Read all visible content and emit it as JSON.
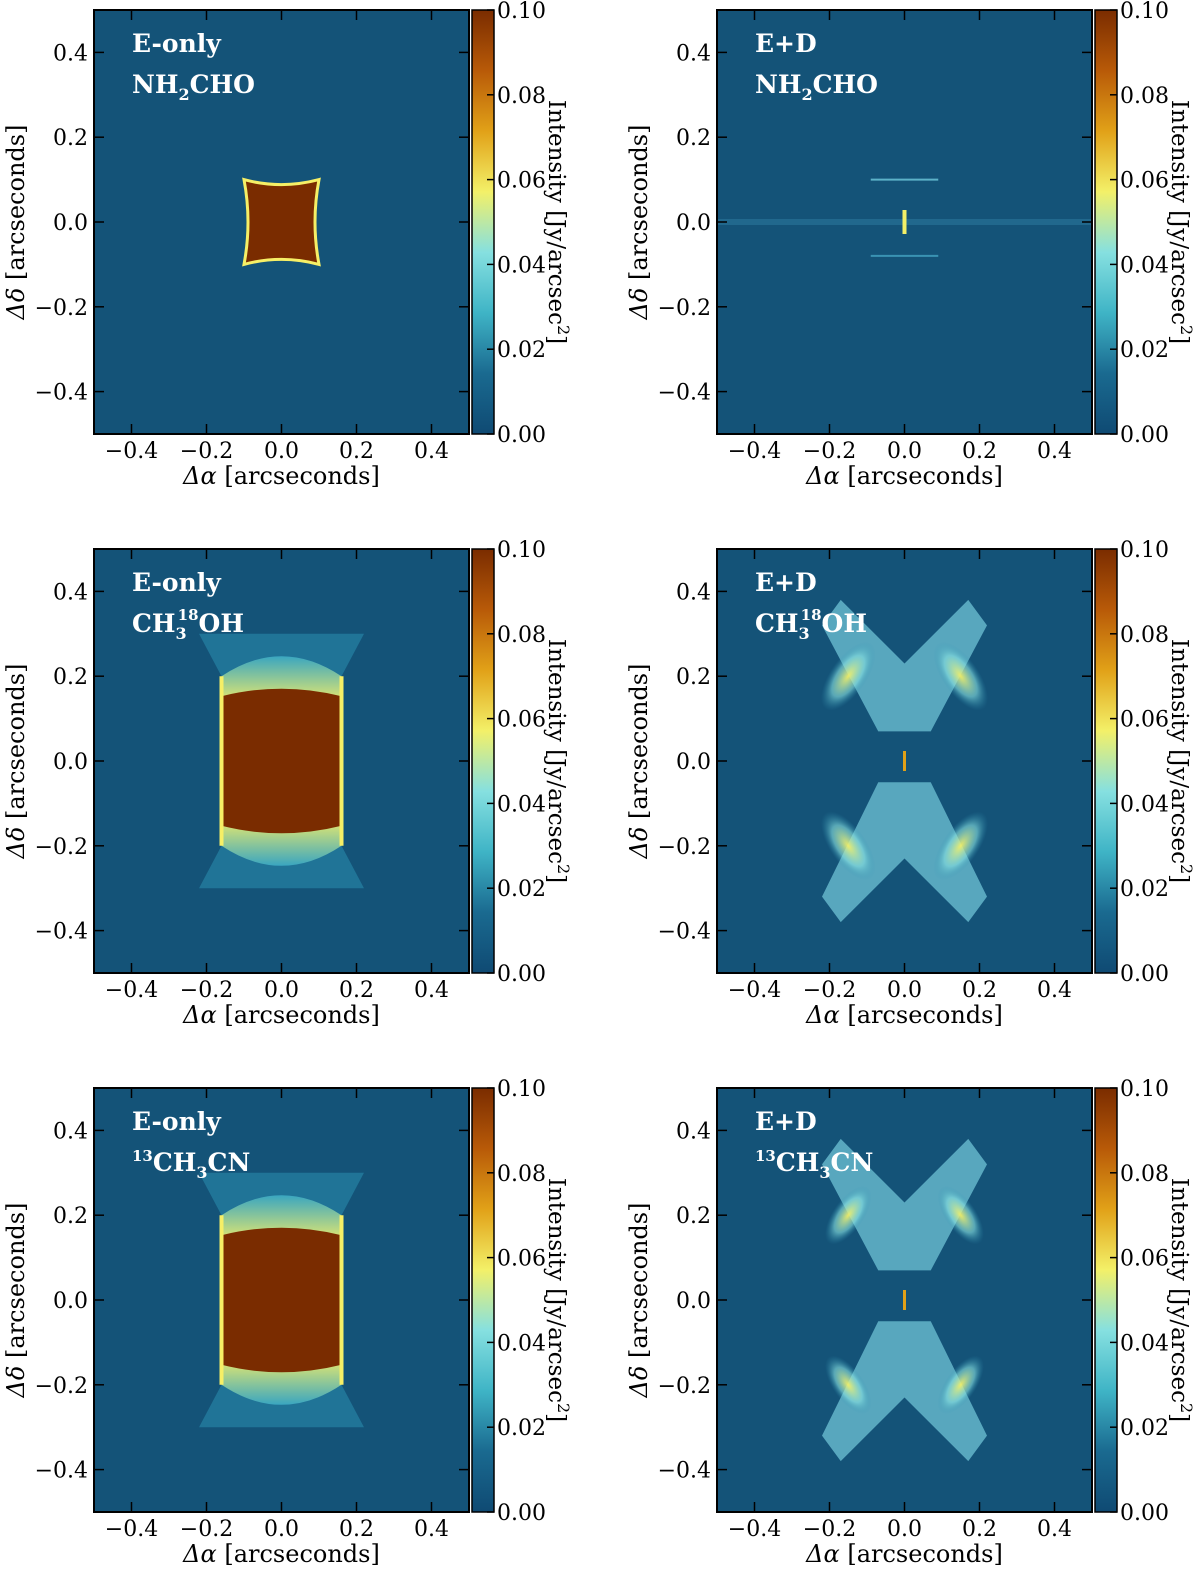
{
  "figure": {
    "colorbar_label": "Intensity [Jy/arcsec$^2$]",
    "colorbar_label_main": "Intensity [Jy/arcsec",
    "colorbar_label_sup": "2",
    "colorbar_label_end": "]",
    "xlabel_symbol": "Δα",
    "xlabel_unit": "[arcseconds]",
    "ylabel_symbol": "Δδ",
    "ylabel_unit": "[arcseconds]"
  },
  "colors": {
    "background_map": "#145378",
    "saturated": "#7a2c00",
    "colormap_stops": [
      "#0f4a73",
      "#1a6a90",
      "#3fb4c6",
      "#86e0e0",
      "#f3f068",
      "#e1a118",
      "#b85a08",
      "#7a2c00"
    ]
  },
  "chart_data": [
    {
      "type": "heatmap",
      "panel": "top-left",
      "model": "E-only",
      "molecule": "NH2CHO",
      "molecule_parts": [
        "NH",
        "2",
        "CHO"
      ],
      "xlim": [
        -0.5,
        0.5
      ],
      "ylim": [
        -0.5,
        0.5
      ],
      "xticks": [
        -0.4,
        -0.2,
        0.0,
        0.2,
        0.4
      ],
      "yticks": [
        -0.4,
        -0.2,
        0.0,
        0.2,
        0.4
      ],
      "xtick_labels": [
        "−0.4",
        "−0.2",
        "0.0",
        "0.2",
        "0.4"
      ],
      "ytick_labels": [
        "−0.4",
        "−0.2",
        "0.0",
        "0.2",
        "0.4"
      ],
      "colorbar": {
        "range": [
          0.0,
          0.1
        ],
        "ticks": [
          "0.00",
          "0.02",
          "0.04",
          "0.06",
          "0.08",
          "0.10"
        ]
      },
      "saturated_region": {
        "x_half_width": 0.1,
        "y_half_height": 0.1
      },
      "grid": false
    },
    {
      "type": "heatmap",
      "panel": "top-right",
      "model": "E+D",
      "molecule": "NH2CHO",
      "molecule_parts": [
        "NH",
        "2",
        "CHO"
      ],
      "xlim": [
        -0.5,
        0.5
      ],
      "ylim": [
        -0.5,
        0.5
      ],
      "xticks": [
        -0.4,
        -0.2,
        0.0,
        0.2,
        0.4
      ],
      "yticks": [
        -0.4,
        -0.2,
        0.0,
        0.2,
        0.4
      ],
      "xtick_labels": [
        "−0.4",
        "−0.2",
        "0.0",
        "0.2",
        "0.4"
      ],
      "ytick_labels": [
        "−0.4",
        "−0.2",
        "0.0",
        "0.2",
        "0.4"
      ],
      "colorbar": {
        "range": [
          0.0,
          0.1
        ],
        "ticks": [
          "0.00",
          "0.02",
          "0.04",
          "0.06",
          "0.08",
          "0.10"
        ]
      },
      "grid": false
    },
    {
      "type": "heatmap",
      "panel": "middle-left",
      "model": "E-only",
      "molecule": "CH3 18OH",
      "molecule_parts": [
        "CH",
        "3",
        "18",
        "OH"
      ],
      "xlim": [
        -0.5,
        0.5
      ],
      "ylim": [
        -0.5,
        0.5
      ],
      "xticks": [
        -0.4,
        -0.2,
        0.0,
        0.2,
        0.4
      ],
      "yticks": [
        -0.4,
        -0.2,
        0.0,
        0.2,
        0.4
      ],
      "xtick_labels": [
        "−0.4",
        "−0.2",
        "0.0",
        "0.2",
        "0.4"
      ],
      "ytick_labels": [
        "−0.4",
        "−0.2",
        "0.0",
        "0.2",
        "0.4"
      ],
      "colorbar": {
        "range": [
          0.0,
          0.1
        ],
        "ticks": [
          "0.00",
          "0.02",
          "0.04",
          "0.06",
          "0.08",
          "0.10"
        ]
      },
      "saturated_region": {
        "x_half_width": 0.16,
        "y_half_height": 0.2
      },
      "grid": false
    },
    {
      "type": "heatmap",
      "panel": "middle-right",
      "model": "E+D",
      "molecule": "CH3 18OH",
      "molecule_parts": [
        "CH",
        "3",
        "18",
        "OH"
      ],
      "xlim": [
        -0.5,
        0.5
      ],
      "ylim": [
        -0.5,
        0.5
      ],
      "xticks": [
        -0.4,
        -0.2,
        0.0,
        0.2,
        0.4
      ],
      "yticks": [
        -0.4,
        -0.2,
        0.0,
        0.2,
        0.4
      ],
      "xtick_labels": [
        "−0.4",
        "−0.2",
        "0.0",
        "0.2",
        "0.4"
      ],
      "ytick_labels": [
        "−0.4",
        "−0.2",
        "0.0",
        "0.2",
        "0.4"
      ],
      "colorbar": {
        "range": [
          0.0,
          0.1
        ],
        "ticks": [
          "0.00",
          "0.02",
          "0.04",
          "0.06",
          "0.08",
          "0.10"
        ]
      },
      "grid": false
    },
    {
      "type": "heatmap",
      "panel": "bottom-left",
      "model": "E-only",
      "molecule": "13CH3CN",
      "molecule_parts": [
        "13",
        "CH",
        "3",
        "CN"
      ],
      "xlim": [
        -0.5,
        0.5
      ],
      "ylim": [
        -0.5,
        0.5
      ],
      "xticks": [
        -0.4,
        -0.2,
        0.0,
        0.2,
        0.4
      ],
      "yticks": [
        -0.4,
        -0.2,
        0.0,
        0.2,
        0.4
      ],
      "xtick_labels": [
        "−0.4",
        "−0.2",
        "0.0",
        "0.2",
        "0.4"
      ],
      "ytick_labels": [
        "−0.4",
        "−0.2",
        "0.0",
        "0.2",
        "0.4"
      ],
      "colorbar": {
        "range": [
          0.0,
          0.1
        ],
        "ticks": [
          "0.00",
          "0.02",
          "0.04",
          "0.06",
          "0.08",
          "0.10"
        ]
      },
      "saturated_region": {
        "x_half_width": 0.16,
        "y_half_height": 0.2
      },
      "grid": false
    },
    {
      "type": "heatmap",
      "panel": "bottom-right",
      "model": "E+D",
      "molecule": "13CH3CN",
      "molecule_parts": [
        "13",
        "CH",
        "3",
        "CN"
      ],
      "xlim": [
        -0.5,
        0.5
      ],
      "ylim": [
        -0.5,
        0.5
      ],
      "xticks": [
        -0.4,
        -0.2,
        0.0,
        0.2,
        0.4
      ],
      "yticks": [
        -0.4,
        -0.2,
        0.0,
        0.2,
        0.4
      ],
      "xtick_labels": [
        "−0.4",
        "−0.2",
        "0.0",
        "0.2",
        "0.4"
      ],
      "ytick_labels": [
        "−0.4",
        "−0.2",
        "0.0",
        "0.2",
        "0.4"
      ],
      "colorbar": {
        "range": [
          0.0,
          0.1
        ],
        "ticks": [
          "0.00",
          "0.02",
          "0.04",
          "0.06",
          "0.08",
          "0.10"
        ]
      },
      "grid": false
    }
  ]
}
